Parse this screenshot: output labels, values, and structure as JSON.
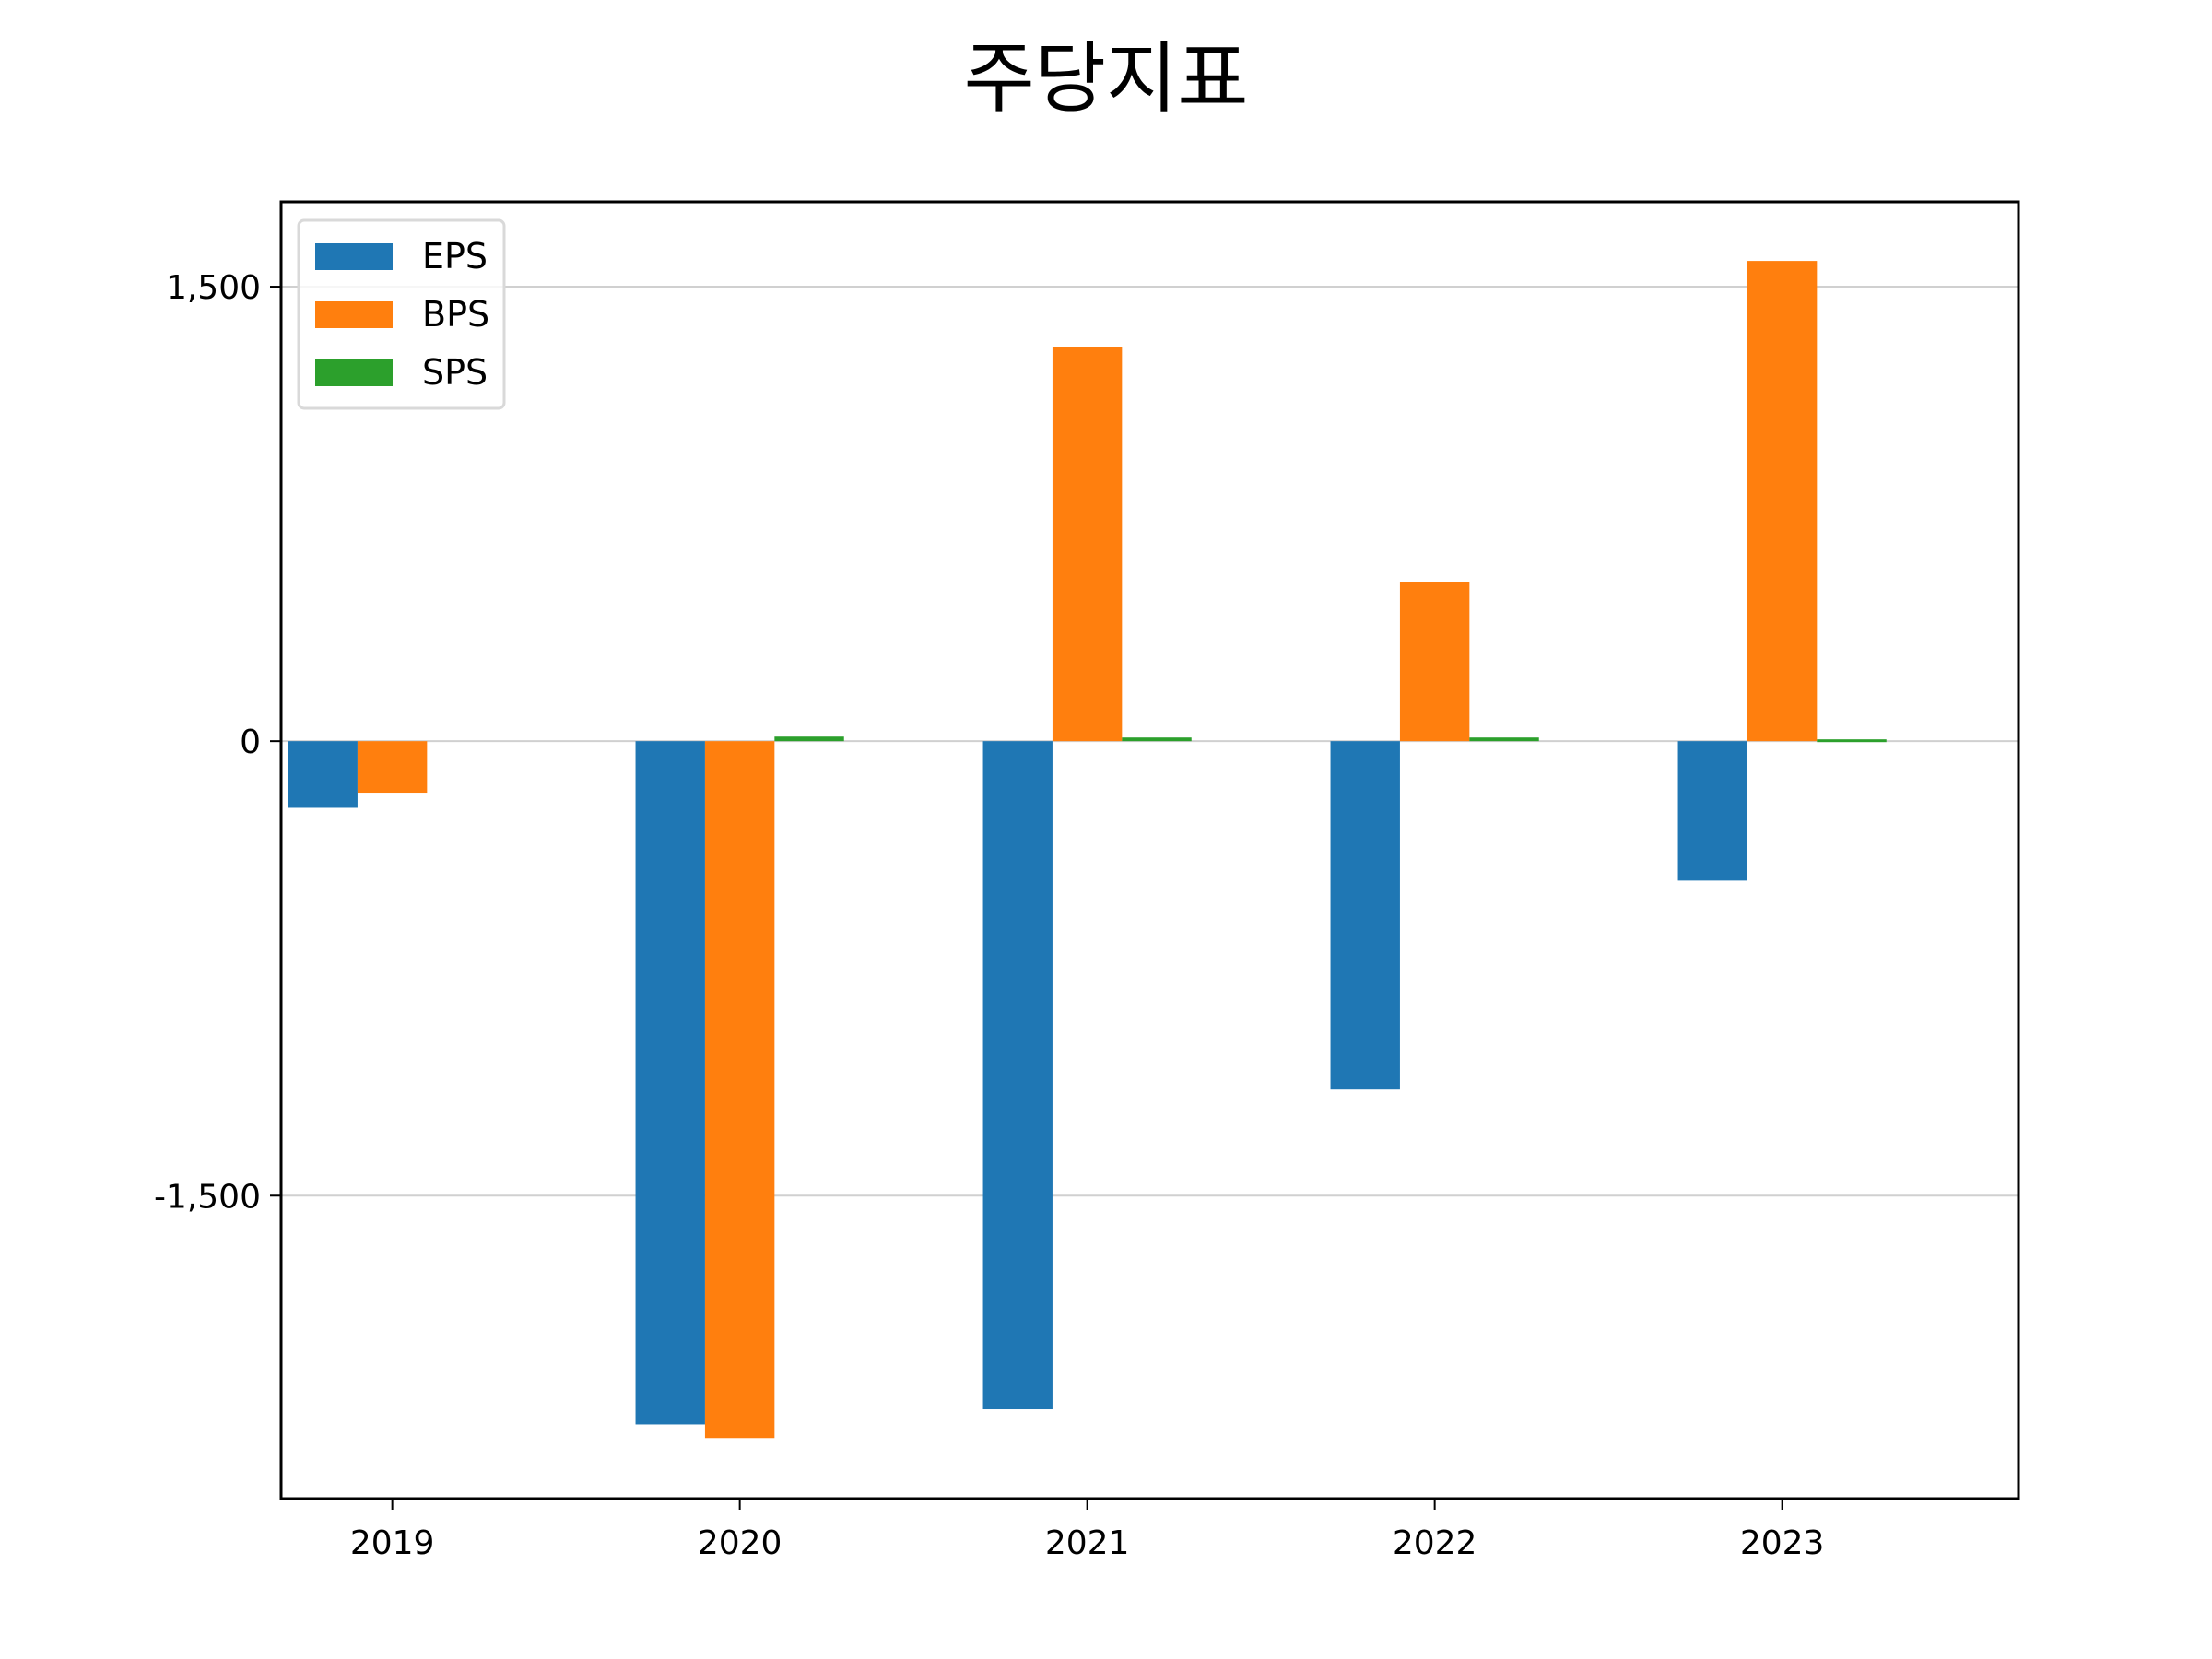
{
  "chart_data": {
    "type": "bar",
    "title": "주당지표",
    "xlabel": "",
    "ylabel": "",
    "categories": [
      "2019",
      "2020",
      "2021",
      "2022",
      "2023"
    ],
    "series": [
      {
        "name": "EPS",
        "color": "#1f77b4",
        "values": [
          -220,
          -2255,
          -2205,
          -1150,
          -460
        ]
      },
      {
        "name": "BPS",
        "color": "#ff7f0e",
        "values": [
          -170,
          -2300,
          1300,
          525,
          1585
        ]
      },
      {
        "name": "SPS",
        "color": "#2ca02c",
        "values": [
          0,
          15,
          12,
          12,
          6
        ]
      }
    ],
    "ylim": [
      -2500,
      1780
    ],
    "yticks": [
      1500,
      0,
      -1500
    ],
    "ytick_labels": [
      "1,500",
      "0",
      "-1,500"
    ],
    "grid": "horizontal",
    "legend_position": "upper-left"
  }
}
